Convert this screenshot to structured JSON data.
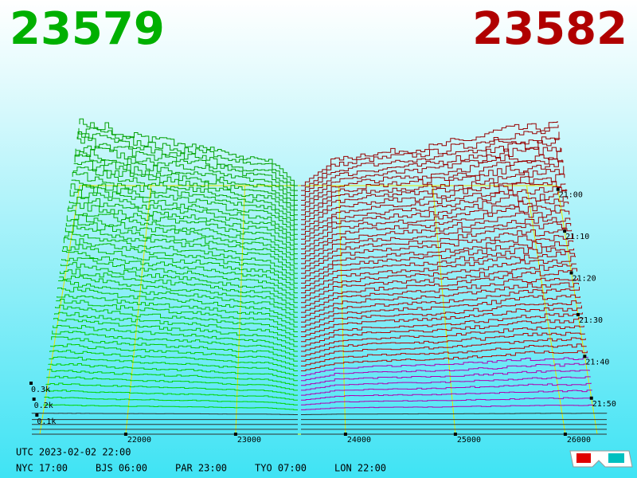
{
  "chart_data": {
    "type": "depth",
    "best_bid": 23579,
    "best_ask": 23582,
    "xticks": [
      22000,
      23000,
      24000,
      25000,
      26000
    ],
    "time_ticks": [
      "21:00",
      "21:10",
      "21:20",
      "21:30",
      "21:40",
      "21:50"
    ],
    "zticks": [
      {
        "value": 300,
        "label": "0.3k"
      },
      {
        "value": 200,
        "label": "0.2k"
      },
      {
        "value": 100,
        "label": "0.1k"
      }
    ],
    "bid_color": "#00b000",
    "ask_color": "#b00000",
    "clock": {
      "utc": "UTC 2023-02-02 22:00",
      "cities": [
        "NYC 17:00",
        "BJS 06:00",
        "PAR 23:00",
        "TYO 07:00",
        "LON 22:00"
      ]
    }
  }
}
